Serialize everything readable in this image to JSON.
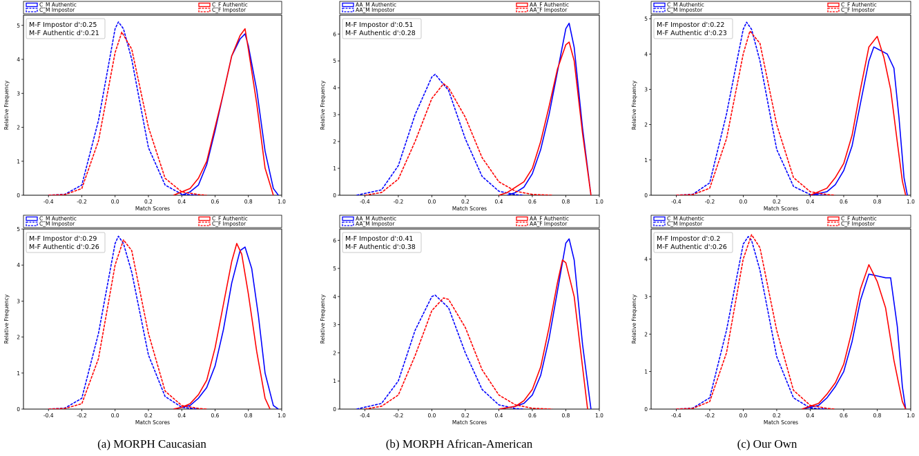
{
  "captions": [
    "(a) MORPH Caucasian",
    "(b) MORPH African-American",
    "(c) Our Own"
  ],
  "colors": {
    "male": "#0000ff",
    "female": "#ff0000"
  },
  "chart_data": [
    {
      "type": "line",
      "xlabel": "Match Scores",
      "ylabel": "Relative Frequency",
      "xlim": [
        -0.55,
        1.0
      ],
      "ylim": [
        0,
        5.3
      ],
      "grid": false,
      "legend": "top",
      "xticks": [
        "-0.4",
        "-0.2",
        "0.0",
        "0.2",
        "0.4",
        "0.6",
        "0.8",
        "1.0"
      ],
      "yticks": [
        "0",
        "1",
        "2",
        "3",
        "4",
        "5"
      ],
      "annotations": [
        "M-F Impostor d':0.25",
        "M-F Authentic d':0.21"
      ],
      "series": [
        {
          "name": "C_M Authentic",
          "color": "#0000ff",
          "dash": false,
          "x": [
            0.4,
            0.45,
            0.5,
            0.55,
            0.6,
            0.65,
            0.7,
            0.75,
            0.78,
            0.8,
            0.85,
            0.9,
            0.95,
            0.98
          ],
          "y": [
            0,
            0.1,
            0.3,
            0.9,
            1.9,
            3.0,
            4.1,
            4.6,
            4.75,
            4.4,
            3.1,
            1.3,
            0.2,
            0
          ]
        },
        {
          "name": "C_M Impostor",
          "color": "#0000ff",
          "dash": true,
          "x": [
            -0.4,
            -0.3,
            -0.2,
            -0.1,
            0,
            0.02,
            0.05,
            0.1,
            0.2,
            0.3,
            0.4,
            0.5
          ],
          "y": [
            0,
            0.03,
            0.3,
            2.2,
            4.9,
            5.1,
            4.9,
            4.0,
            1.4,
            0.3,
            0.03,
            0
          ]
        },
        {
          "name": "C_F Authentic",
          "color": "#ff0000",
          "dash": false,
          "x": [
            0.35,
            0.4,
            0.45,
            0.5,
            0.55,
            0.6,
            0.65,
            0.7,
            0.75,
            0.78,
            0.8,
            0.85,
            0.9,
            0.95
          ],
          "y": [
            0,
            0.1,
            0.2,
            0.5,
            1.0,
            2.0,
            3.0,
            4.1,
            4.7,
            4.9,
            4.3,
            2.7,
            0.8,
            0
          ]
        },
        {
          "name": "C_F Impostor",
          "color": "#ff0000",
          "dash": true,
          "x": [
            -0.4,
            -0.3,
            -0.2,
            -0.1,
            0,
            0.04,
            0.1,
            0.2,
            0.3,
            0.4,
            0.5,
            0.55
          ],
          "y": [
            0,
            0.02,
            0.2,
            1.6,
            4.2,
            4.8,
            4.3,
            2.0,
            0.5,
            0.1,
            0.02,
            0
          ]
        }
      ]
    },
    {
      "type": "line",
      "xlabel": "Match Scores",
      "ylabel": "Relative Frequency",
      "xlim": [
        -0.55,
        1.0
      ],
      "ylim": [
        0,
        6.7
      ],
      "grid": false,
      "legend": "top",
      "xticks": [
        "-0.4",
        "-0.2",
        "0.0",
        "0.2",
        "0.4",
        "0.6",
        "0.8",
        "1.0"
      ],
      "yticks": [
        "0",
        "1",
        "2",
        "3",
        "4",
        "5",
        "6"
      ],
      "annotations": [
        "M-F Impostor d':0.51",
        "M-F Authentic d':0.28"
      ],
      "series": [
        {
          "name": "AA_M Authentic",
          "color": "#0000ff",
          "dash": false,
          "x": [
            0.45,
            0.5,
            0.55,
            0.6,
            0.65,
            0.7,
            0.75,
            0.8,
            0.82,
            0.85,
            0.9,
            0.95
          ],
          "y": [
            0,
            0.1,
            0.3,
            0.8,
            1.7,
            3.0,
            4.6,
            6.2,
            6.4,
            5.5,
            2.5,
            0
          ]
        },
        {
          "name": "AA_M Impostor",
          "color": "#0000ff",
          "dash": true,
          "x": [
            -0.45,
            -0.3,
            -0.2,
            -0.1,
            0,
            0.02,
            0.1,
            0.2,
            0.3,
            0.4,
            0.5,
            0.55
          ],
          "y": [
            0,
            0.2,
            1.1,
            3.0,
            4.4,
            4.5,
            3.9,
            2.1,
            0.7,
            0.15,
            0.02,
            0
          ]
        },
        {
          "name": "AA_F Authentic",
          "color": "#ff0000",
          "dash": false,
          "x": [
            0.4,
            0.45,
            0.5,
            0.55,
            0.6,
            0.65,
            0.7,
            0.75,
            0.8,
            0.82,
            0.85,
            0.9,
            0.95
          ],
          "y": [
            0,
            0.1,
            0.3,
            0.5,
            1.0,
            2.0,
            3.3,
            4.7,
            5.6,
            5.7,
            5.0,
            2.3,
            0
          ]
        },
        {
          "name": "AA_F Impostor",
          "color": "#ff0000",
          "dash": true,
          "x": [
            -0.4,
            -0.3,
            -0.2,
            -0.1,
            0,
            0.07,
            0.1,
            0.2,
            0.3,
            0.4,
            0.5,
            0.6,
            0.72
          ],
          "y": [
            0,
            0.1,
            0.6,
            2.0,
            3.6,
            4.15,
            4.0,
            2.9,
            1.4,
            0.5,
            0.15,
            0.03,
            0
          ]
        }
      ]
    },
    {
      "type": "line",
      "xlabel": "Match Scores",
      "ylabel": "Relative Frequency",
      "xlim": [
        -0.55,
        1.0
      ],
      "ylim": [
        0,
        5.1
      ],
      "grid": false,
      "legend": "top",
      "xticks": [
        "-0.4",
        "-0.2",
        "0.0",
        "0.2",
        "0.4",
        "0.6",
        "0.8",
        "1.0"
      ],
      "yticks": [
        "0",
        "1",
        "2",
        "3",
        "4",
        "5"
      ],
      "annotations": [
        "M-F Impostor d':0.22",
        "M-F Authentic d':0.23"
      ],
      "series": [
        {
          "name": "C_M Authentic",
          "color": "#0000ff",
          "dash": false,
          "x": [
            0.4,
            0.5,
            0.55,
            0.6,
            0.65,
            0.7,
            0.75,
            0.78,
            0.82,
            0.86,
            0.9,
            0.93,
            0.96,
            0.98
          ],
          "y": [
            0,
            0.1,
            0.3,
            0.7,
            1.4,
            2.6,
            3.8,
            4.2,
            4.1,
            4.0,
            3.6,
            2.2,
            0.5,
            0
          ]
        },
        {
          "name": "C_M Impostor",
          "color": "#0000ff",
          "dash": true,
          "x": [
            -0.4,
            -0.3,
            -0.2,
            -0.1,
            0,
            0.02,
            0.05,
            0.1,
            0.2,
            0.3,
            0.4,
            0.5
          ],
          "y": [
            0,
            0.03,
            0.35,
            2.3,
            4.7,
            4.9,
            4.7,
            3.8,
            1.3,
            0.25,
            0.02,
            0
          ]
        },
        {
          "name": "C_F Authentic",
          "color": "#ff0000",
          "dash": false,
          "x": [
            0.4,
            0.5,
            0.55,
            0.6,
            0.65,
            0.7,
            0.75,
            0.8,
            0.84,
            0.88,
            0.92,
            0.95,
            0.97
          ],
          "y": [
            0,
            0.2,
            0.5,
            0.9,
            1.7,
            3.0,
            4.2,
            4.5,
            3.9,
            3.0,
            1.5,
            0.4,
            0
          ]
        },
        {
          "name": "C_F Impostor",
          "color": "#ff0000",
          "dash": true,
          "x": [
            -0.4,
            -0.3,
            -0.2,
            -0.1,
            0,
            0.04,
            0.1,
            0.2,
            0.3,
            0.4,
            0.5,
            0.55
          ],
          "y": [
            0,
            0.02,
            0.2,
            1.6,
            4.0,
            4.65,
            4.3,
            2.0,
            0.5,
            0.1,
            0.02,
            0
          ]
        }
      ]
    },
    {
      "type": "line",
      "xlabel": "Match Scores",
      "ylabel": "Relative Frequency",
      "xlim": [
        -0.55,
        1.0
      ],
      "ylim": [
        0,
        5.0
      ],
      "grid": false,
      "legend": "top",
      "xticks": [
        "-0.4",
        "-0.2",
        "0.0",
        "0.2",
        "0.4",
        "0.6",
        "0.8",
        "1.0"
      ],
      "yticks": [
        "0",
        "1",
        "2",
        "3",
        "4",
        "5"
      ],
      "annotations": [
        "M-F Impostor d':0.29",
        "M-F Authentic d':0.26"
      ],
      "series": [
        {
          "name": "C_M Authentic",
          "color": "#0000ff",
          "dash": false,
          "x": [
            0.35,
            0.4,
            0.45,
            0.5,
            0.55,
            0.6,
            0.65,
            0.7,
            0.75,
            0.78,
            0.82,
            0.86,
            0.9,
            0.95,
            0.98
          ],
          "y": [
            0,
            0.05,
            0.1,
            0.3,
            0.6,
            1.2,
            2.2,
            3.5,
            4.4,
            4.5,
            3.9,
            2.6,
            1.0,
            0.1,
            0
          ]
        },
        {
          "name": "C_M Impostor",
          "color": "#0000ff",
          "dash": true,
          "x": [
            -0.4,
            -0.3,
            -0.2,
            -0.1,
            0,
            0.02,
            0.05,
            0.1,
            0.2,
            0.3,
            0.4,
            0.5
          ],
          "y": [
            0,
            0.03,
            0.3,
            2.1,
            4.6,
            4.8,
            4.6,
            3.8,
            1.5,
            0.35,
            0.05,
            0
          ]
        },
        {
          "name": "C_F Authentic",
          "color": "#ff0000",
          "dash": false,
          "x": [
            0.35,
            0.4,
            0.45,
            0.5,
            0.55,
            0.6,
            0.65,
            0.7,
            0.73,
            0.76,
            0.8,
            0.85,
            0.9,
            0.93
          ],
          "y": [
            0,
            0.05,
            0.15,
            0.4,
            0.8,
            1.7,
            2.9,
            4.1,
            4.6,
            4.3,
            3.2,
            1.6,
            0.3,
            0
          ]
        },
        {
          "name": "C_F Impostor",
          "color": "#ff0000",
          "dash": true,
          "x": [
            -0.4,
            -0.3,
            -0.2,
            -0.1,
            0,
            0.05,
            0.1,
            0.2,
            0.3,
            0.4,
            0.5,
            0.55
          ],
          "y": [
            0,
            0.02,
            0.15,
            1.4,
            4.0,
            4.7,
            4.4,
            2.1,
            0.5,
            0.1,
            0.02,
            0
          ]
        }
      ]
    },
    {
      "type": "line",
      "xlabel": "Match Scores",
      "ylabel": "Relative Frequency",
      "xlim": [
        -0.55,
        1.0
      ],
      "ylim": [
        0,
        6.4
      ],
      "grid": false,
      "legend": "top",
      "xticks": [
        "-0.4",
        "-0.2",
        "0.0",
        "0.2",
        "0.4",
        "0.6",
        "0.8",
        "1.0"
      ],
      "yticks": [
        "0",
        "1",
        "2",
        "3",
        "4",
        "5",
        "6"
      ],
      "annotations": [
        "M-F Impostor d':0.41",
        "M-F Authentic d':0.38"
      ],
      "series": [
        {
          "name": "AA_M Authentic",
          "color": "#0000ff",
          "dash": false,
          "x": [
            0.4,
            0.5,
            0.55,
            0.6,
            0.65,
            0.7,
            0.75,
            0.8,
            0.82,
            0.85,
            0.9,
            0.95
          ],
          "y": [
            0,
            0.1,
            0.2,
            0.5,
            1.2,
            2.5,
            4.2,
            5.9,
            6.05,
            5.3,
            2.3,
            0
          ]
        },
        {
          "name": "AA_M Impostor",
          "color": "#0000ff",
          "dash": true,
          "x": [
            -0.45,
            -0.3,
            -0.2,
            -0.1,
            0,
            0.02,
            0.1,
            0.2,
            0.3,
            0.4,
            0.5,
            0.55
          ],
          "y": [
            0,
            0.2,
            1.0,
            2.8,
            4.0,
            4.05,
            3.6,
            2.0,
            0.7,
            0.15,
            0.02,
            0
          ]
        },
        {
          "name": "AA_F Authentic",
          "color": "#ff0000",
          "dash": false,
          "x": [
            0.4,
            0.5,
            0.55,
            0.6,
            0.65,
            0.7,
            0.75,
            0.78,
            0.8,
            0.85,
            0.9,
            0.93
          ],
          "y": [
            0,
            0.1,
            0.3,
            0.7,
            1.5,
            2.9,
            4.5,
            5.3,
            5.2,
            4.0,
            1.5,
            0
          ]
        },
        {
          "name": "AA_F Impostor",
          "color": "#ff0000",
          "dash": true,
          "x": [
            -0.4,
            -0.3,
            -0.2,
            -0.1,
            0,
            0.07,
            0.1,
            0.2,
            0.3,
            0.4,
            0.5,
            0.6,
            0.72
          ],
          "y": [
            0,
            0.1,
            0.5,
            1.9,
            3.5,
            3.95,
            3.9,
            2.9,
            1.4,
            0.5,
            0.15,
            0.03,
            0
          ]
        }
      ]
    },
    {
      "type": "line",
      "xlabel": "Match Scores",
      "ylabel": "Relative Frequency",
      "xlim": [
        -0.55,
        1.0
      ],
      "ylim": [
        0,
        4.8
      ],
      "grid": false,
      "legend": "top",
      "xticks": [
        "-0.4",
        "-0.2",
        "0.0",
        "0.2",
        "0.4",
        "0.6",
        "0.8",
        "1.0"
      ],
      "yticks": [
        "0",
        "1",
        "2",
        "3",
        "4"
      ],
      "annotations": [
        "M-F Impostor d':0.2",
        "M-F Authentic d':0.26"
      ],
      "series": [
        {
          "name": "C_M Authentic",
          "color": "#0000ff",
          "dash": false,
          "x": [
            0.35,
            0.45,
            0.5,
            0.55,
            0.6,
            0.65,
            0.7,
            0.75,
            0.8,
            0.85,
            0.88,
            0.92,
            0.95,
            0.97
          ],
          "y": [
            0,
            0.1,
            0.3,
            0.6,
            1.0,
            1.8,
            2.9,
            3.6,
            3.55,
            3.5,
            3.5,
            2.2,
            0.6,
            0
          ]
        },
        {
          "name": "C_M Impostor",
          "color": "#0000ff",
          "dash": true,
          "x": [
            -0.4,
            -0.3,
            -0.2,
            -0.1,
            0,
            0.03,
            0.05,
            0.1,
            0.2,
            0.3,
            0.4,
            0.5
          ],
          "y": [
            0,
            0.03,
            0.3,
            2.1,
            4.4,
            4.6,
            4.5,
            3.7,
            1.4,
            0.3,
            0.03,
            0
          ]
        },
        {
          "name": "C_F Authentic",
          "color": "#ff0000",
          "dash": false,
          "x": [
            0.35,
            0.45,
            0.5,
            0.55,
            0.6,
            0.65,
            0.7,
            0.75,
            0.8,
            0.85,
            0.9,
            0.95,
            0.97
          ],
          "y": [
            0,
            0.15,
            0.4,
            0.7,
            1.2,
            2.1,
            3.2,
            3.85,
            3.4,
            2.7,
            1.3,
            0.2,
            0
          ]
        },
        {
          "name": "C_F Impostor",
          "color": "#ff0000",
          "dash": true,
          "x": [
            -0.4,
            -0.3,
            -0.2,
            -0.1,
            0,
            0.05,
            0.1,
            0.2,
            0.3,
            0.4,
            0.5,
            0.55
          ],
          "y": [
            0,
            0.02,
            0.2,
            1.5,
            4.0,
            4.65,
            4.3,
            2.1,
            0.5,
            0.1,
            0.02,
            0
          ]
        }
      ]
    }
  ]
}
